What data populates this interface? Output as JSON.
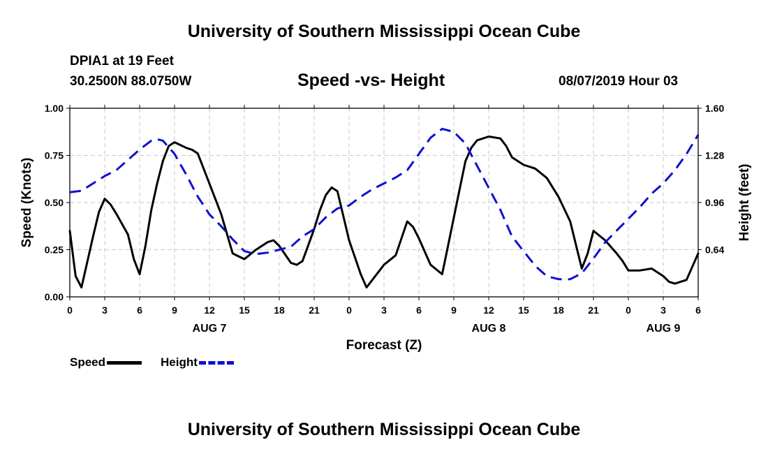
{
  "header": {
    "title_top": "University of Southern Mississippi Ocean Cube",
    "title_bottom": "University of Southern Mississippi Ocean Cube",
    "station": "DPIA1 at 19 Feet",
    "coords": "30.2500N 88.0750W",
    "subtitle": "Speed -vs- Height",
    "datetime": "08/07/2019 Hour 03"
  },
  "legend": {
    "speed_label": "Speed",
    "height_label": "Height"
  },
  "colors": {
    "speed": "#000000",
    "height": "#1010d0",
    "grid": "#c8c8c8"
  },
  "chart_data": {
    "type": "line",
    "xlabel": "Forecast (Z)",
    "ylabel": "Speed (Knots)",
    "y2label": "Height (feet)",
    "xlim": [
      0,
      54
    ],
    "ylim": [
      0,
      1.0
    ],
    "y2lim": [
      0.32,
      1.6
    ],
    "grid": true,
    "x_ticks": [
      {
        "x": 0,
        "label": "0"
      },
      {
        "x": 3,
        "label": "3"
      },
      {
        "x": 6,
        "label": "6"
      },
      {
        "x": 9,
        "label": "9"
      },
      {
        "x": 12,
        "label": "12"
      },
      {
        "x": 15,
        "label": "15"
      },
      {
        "x": 18,
        "label": "18"
      },
      {
        "x": 21,
        "label": "21"
      },
      {
        "x": 24,
        "label": "0"
      },
      {
        "x": 27,
        "label": "3"
      },
      {
        "x": 30,
        "label": "6"
      },
      {
        "x": 33,
        "label": "9"
      },
      {
        "x": 36,
        "label": "12"
      },
      {
        "x": 39,
        "label": "15"
      },
      {
        "x": 42,
        "label": "18"
      },
      {
        "x": 45,
        "label": "21"
      },
      {
        "x": 48,
        "label": "0"
      },
      {
        "x": 51,
        "label": "3"
      },
      {
        "x": 54,
        "label": "6"
      }
    ],
    "y_ticks": [
      {
        "y": 0.0,
        "label": "0.00"
      },
      {
        "y": 0.25,
        "label": "0.25"
      },
      {
        "y": 0.5,
        "label": "0.50"
      },
      {
        "y": 0.75,
        "label": "0.75"
      },
      {
        "y": 1.0,
        "label": "1.00"
      }
    ],
    "y2_ticks": [
      {
        "y": 0.64,
        "label": "0.64"
      },
      {
        "y": 0.96,
        "label": "0.96"
      },
      {
        "y": 1.28,
        "label": "1.28"
      },
      {
        "y": 1.6,
        "label": "1.60"
      }
    ],
    "date_labels": [
      {
        "x": 12,
        "label": "AUG 7"
      },
      {
        "x": 36,
        "label": "AUG 8"
      },
      {
        "x": 51,
        "label": "AUG 9"
      }
    ],
    "series": [
      {
        "name": "Speed",
        "axis": "left",
        "style": "solid",
        "x": [
          0,
          0.5,
          1,
          2,
          2.5,
          3,
          3.5,
          4,
          5,
          5.5,
          6,
          6.5,
          7,
          7.5,
          8,
          8.5,
          9,
          10,
          10.5,
          11,
          12,
          13,
          14,
          15,
          16,
          17,
          17.5,
          18,
          19,
          19.5,
          20,
          21,
          21.5,
          22,
          22.5,
          23,
          24,
          25,
          25.5,
          26,
          27,
          28,
          28.5,
          29,
          29.5,
          30,
          31,
          32,
          32.5,
          33,
          33.5,
          34,
          34.5,
          35,
          36,
          37,
          37.5,
          38,
          39,
          40,
          41,
          42,
          43,
          44,
          44.5,
          45,
          46,
          47,
          47.5,
          48,
          49,
          50,
          51,
          51.5,
          52,
          53,
          54
        ],
        "values": [
          0.35,
          0.11,
          0.05,
          0.32,
          0.45,
          0.52,
          0.49,
          0.44,
          0.33,
          0.2,
          0.12,
          0.27,
          0.46,
          0.6,
          0.72,
          0.8,
          0.82,
          0.79,
          0.78,
          0.76,
          0.6,
          0.44,
          0.23,
          0.2,
          0.25,
          0.29,
          0.3,
          0.27,
          0.18,
          0.17,
          0.19,
          0.36,
          0.46,
          0.54,
          0.58,
          0.56,
          0.3,
          0.12,
          0.05,
          0.09,
          0.17,
          0.22,
          0.31,
          0.4,
          0.37,
          0.31,
          0.17,
          0.12,
          0.27,
          0.42,
          0.57,
          0.72,
          0.79,
          0.83,
          0.85,
          0.84,
          0.8,
          0.74,
          0.7,
          0.68,
          0.63,
          0.53,
          0.4,
          0.15,
          0.23,
          0.35,
          0.3,
          0.23,
          0.19,
          0.14,
          0.14,
          0.15,
          0.11,
          0.08,
          0.07,
          0.09,
          0.23
        ]
      },
      {
        "name": "Height",
        "axis": "right",
        "style": "dashed",
        "x": [
          0,
          1,
          2,
          3,
          4,
          5,
          6,
          7,
          7.5,
          8,
          9,
          10,
          11,
          12,
          13,
          14,
          15,
          16,
          17,
          18,
          19,
          20,
          21,
          22,
          23,
          24,
          25,
          26,
          27,
          28,
          29,
          30,
          31,
          32,
          33,
          34,
          35,
          36,
          37,
          38,
          39,
          40,
          41,
          42,
          43,
          44,
          45,
          46,
          47,
          48,
          49,
          50,
          51,
          52,
          53,
          54
        ],
        "values": [
          1.03,
          1.04,
          1.09,
          1.14,
          1.18,
          1.25,
          1.32,
          1.38,
          1.39,
          1.38,
          1.29,
          1.15,
          1.0,
          0.88,
          0.8,
          0.71,
          0.63,
          0.61,
          0.62,
          0.64,
          0.66,
          0.73,
          0.78,
          0.86,
          0.92,
          0.94,
          1.0,
          1.05,
          1.09,
          1.13,
          1.18,
          1.29,
          1.4,
          1.46,
          1.44,
          1.36,
          1.21,
          1.06,
          0.91,
          0.73,
          0.63,
          0.53,
          0.46,
          0.44,
          0.44,
          0.48,
          0.58,
          0.69,
          0.77,
          0.85,
          0.93,
          1.02,
          1.09,
          1.18,
          1.29,
          1.42
        ]
      }
    ]
  }
}
